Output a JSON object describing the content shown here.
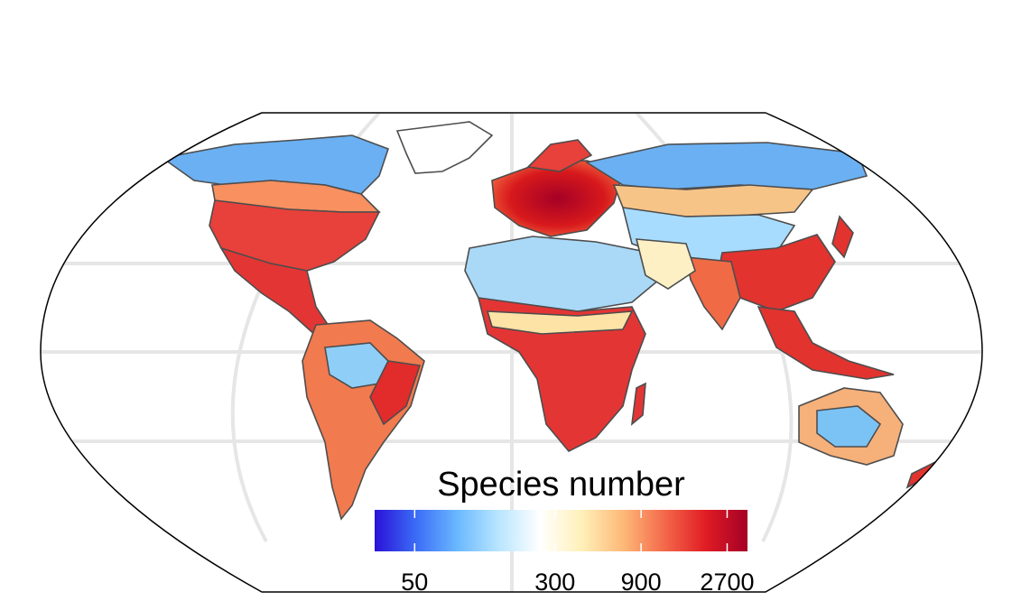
{
  "legend": {
    "title": "Species number",
    "ticks": [
      {
        "value": 50,
        "label": "50"
      },
      {
        "value": 300,
        "label": "300"
      },
      {
        "value": 900,
        "label": "900"
      },
      {
        "value": 2700,
        "label": "2700"
      }
    ],
    "range": [
      30,
      3500
    ],
    "scale": "log",
    "colors": [
      "#2a12d8",
      "#3b6cf6",
      "#6ab8ff",
      "#b9e6ff",
      "#ffffff",
      "#fff0b8",
      "#fdb978",
      "#f4684a",
      "#e01c24",
      "#a50026"
    ]
  },
  "map": {
    "projection": "robinson",
    "graticule": true,
    "land_color": "#ffffff",
    "border_color": "#444444",
    "graticule_color": "#e6e6e6"
  }
}
